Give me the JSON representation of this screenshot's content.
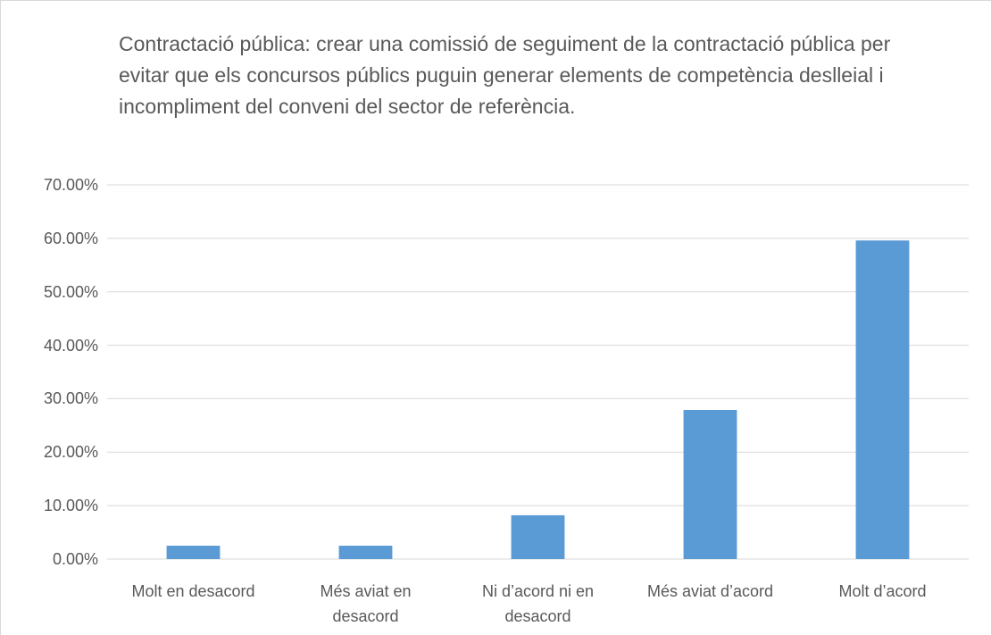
{
  "chart_data": {
    "type": "bar",
    "title": "Contractació pública: crear una comissió de seguiment de la contractació pública per evitar que els concursos públics puguin generar elements de competència deslleial i incompliment del conveni del sector de referència.",
    "categories": [
      "Molt en desacord",
      "Més aviat en desacord",
      "Ni d’acord ni en desacord",
      "Més aviat d’acord",
      "Molt d’acord"
    ],
    "values": [
      2.5,
      2.5,
      8.2,
      27.9,
      59.6
    ],
    "color": "#5b9bd5",
    "ylim": [
      0,
      70
    ],
    "yticks": [
      {
        "value": 0,
        "label": "0.00%"
      },
      {
        "value": 10,
        "label": "10.00%"
      },
      {
        "value": 20,
        "label": "20.00%"
      },
      {
        "value": 30,
        "label": "30.00%"
      },
      {
        "value": 40,
        "label": "40.00%"
      },
      {
        "value": 50,
        "label": "50.00%"
      },
      {
        "value": 60,
        "label": "60.00%"
      },
      {
        "value": 70,
        "label": "70.00%"
      }
    ],
    "grid": true
  }
}
